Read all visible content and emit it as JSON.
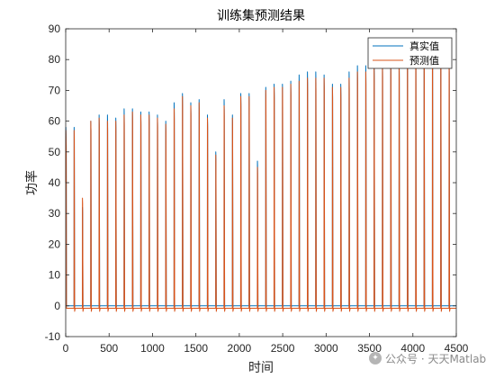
{
  "chart_data": {
    "type": "line",
    "title": "训练集预测结果",
    "xlabel": "时间",
    "ylabel": "功率",
    "xlim": [
      0,
      4500
    ],
    "ylim": [
      -10,
      90
    ],
    "xticks": [
      0,
      500,
      1000,
      1500,
      2000,
      2500,
      3000,
      3500,
      4000,
      4500
    ],
    "yticks": [
      -10,
      0,
      10,
      20,
      30,
      40,
      50,
      60,
      70,
      80,
      90
    ],
    "grid": false,
    "legend_position": "top-right",
    "series": [
      {
        "name": "真实值",
        "color": "#0072BD"
      },
      {
        "name": "预测值",
        "color": "#D95319"
      }
    ],
    "cycle_period": 96,
    "pulse_starts": [
      0,
      96,
      192,
      288,
      384,
      480,
      576,
      672,
      768,
      864,
      960,
      1056,
      1152,
      1248,
      1344,
      1440,
      1536,
      1632,
      1728,
      1824,
      1920,
      2016,
      2112,
      2208,
      2304,
      2400,
      2496,
      2592,
      2688,
      2784,
      2880,
      2976,
      3072,
      3168,
      3264,
      3360,
      3456,
      3552,
      3648,
      3744,
      3840,
      3936,
      4032,
      4128,
      4224,
      4320,
      4416
    ],
    "actual_peaks": [
      58,
      58,
      32,
      60,
      62,
      62,
      61,
      64,
      64,
      63,
      63,
      62,
      60,
      66,
      69,
      66,
      67,
      62,
      50,
      67,
      62,
      69,
      69,
      47,
      71,
      72,
      72,
      73,
      75,
      76,
      76,
      75,
      72,
      72,
      76,
      78,
      78,
      79,
      80,
      80,
      80,
      82,
      83,
      83,
      83,
      84,
      80
    ],
    "predicted_peaks": [
      57,
      57,
      35,
      60,
      61,
      60,
      60,
      62,
      63,
      62,
      62,
      61,
      59,
      64,
      68,
      65,
      66,
      61,
      49,
      65,
      61,
      68,
      68,
      45,
      70,
      71,
      71,
      72,
      73,
      74,
      74,
      74,
      71,
      71,
      74,
      76,
      76,
      77,
      78,
      78,
      78,
      80,
      81,
      81,
      81,
      82,
      79
    ],
    "baseline_actual": 0,
    "baseline_predicted": -0.8
  },
  "watermark": {
    "text": "公众号 · 天天Matlab"
  }
}
